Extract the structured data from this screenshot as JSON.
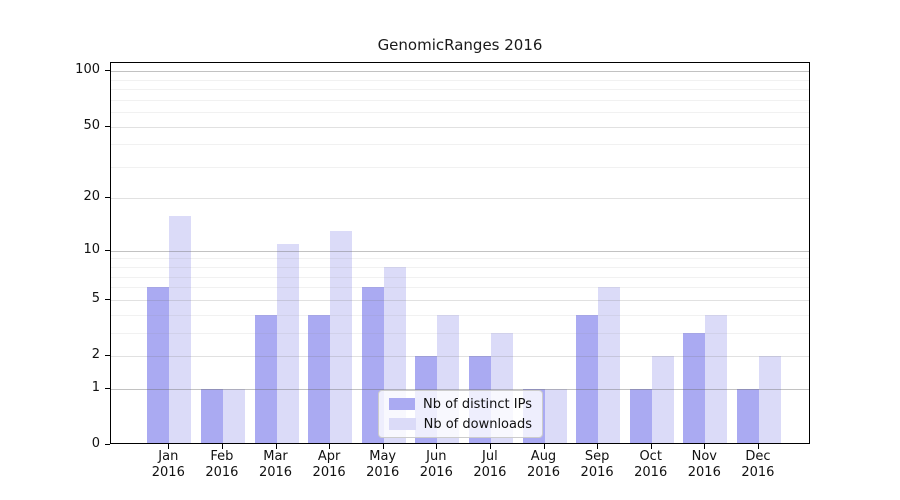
{
  "title": "GenomicRanges 2016",
  "chart_data": {
    "type": "bar",
    "title": "GenomicRanges 2016",
    "categories": [
      "Jan",
      "Feb",
      "Mar",
      "Apr",
      "May",
      "Jun",
      "Jul",
      "Aug",
      "Sep",
      "Oct",
      "Nov",
      "Dec"
    ],
    "category_year": "2016",
    "series": [
      {
        "name": "Nb of distinct IPs",
        "color": "#aaaaf2",
        "values": [
          6,
          1,
          4,
          4,
          6,
          2,
          2,
          1,
          4,
          1,
          3,
          1
        ]
      },
      {
        "name": "Nb of downloads",
        "color": "#dbdbf8",
        "values": [
          16,
          1,
          11,
          13,
          8,
          4,
          3,
          1,
          6,
          2,
          4,
          2
        ]
      }
    ],
    "xlabel": "",
    "ylabel": "",
    "y_axis": {
      "scale": "log1p",
      "labeled_ticks": [
        0,
        1,
        2,
        5,
        10,
        20,
        50,
        100
      ],
      "strong_gridlines": [
        1,
        10,
        100
      ],
      "mid_gridlines": [
        2,
        5,
        20,
        50
      ],
      "minor_gridlines": [
        3,
        4,
        6,
        7,
        8,
        9,
        30,
        40,
        60,
        70,
        80,
        90
      ],
      "ylim_top_value": 120
    },
    "grid": "on",
    "legend_position": "lower center"
  }
}
